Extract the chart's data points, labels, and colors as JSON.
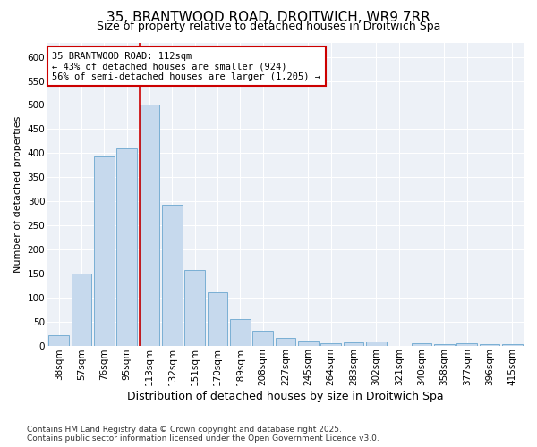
{
  "title_line1": "35, BRANTWOOD ROAD, DROITWICH, WR9 7RR",
  "title_line2": "Size of property relative to detached houses in Droitwich Spa",
  "xlabel": "Distribution of detached houses by size in Droitwich Spa",
  "ylabel": "Number of detached properties",
  "categories": [
    "38sqm",
    "57sqm",
    "76sqm",
    "95sqm",
    "113sqm",
    "132sqm",
    "151sqm",
    "170sqm",
    "189sqm",
    "208sqm",
    "227sqm",
    "245sqm",
    "264sqm",
    "283sqm",
    "302sqm",
    "321sqm",
    "340sqm",
    "358sqm",
    "377sqm",
    "396sqm",
    "415sqm"
  ],
  "values": [
    22,
    150,
    393,
    410,
    500,
    293,
    158,
    110,
    55,
    30,
    16,
    11,
    4,
    7,
    9,
    0,
    4,
    2,
    4,
    2,
    3
  ],
  "bar_color": "#c6d9ed",
  "bar_edge_color": "#7aafd4",
  "property_line_index": 4,
  "property_line_color": "#cc0000",
  "annotation_text": "35 BRANTWOOD ROAD: 112sqm\n← 43% of detached houses are smaller (924)\n56% of semi-detached houses are larger (1,205) →",
  "annotation_box_color": "white",
  "annotation_box_edge_color": "#cc0000",
  "ylim": [
    0,
    630
  ],
  "yticks": [
    0,
    50,
    100,
    150,
    200,
    250,
    300,
    350,
    400,
    450,
    500,
    550,
    600
  ],
  "background_color": "#ffffff",
  "plot_background_color": "#edf1f7",
  "grid_color": "#ffffff",
  "footer_text": "Contains HM Land Registry data © Crown copyright and database right 2025.\nContains public sector information licensed under the Open Government Licence v3.0.",
  "title_fontsize": 11,
  "subtitle_fontsize": 9,
  "tick_fontsize": 7.5,
  "xlabel_fontsize": 9,
  "ylabel_fontsize": 8,
  "annotation_fontsize": 7.5
}
